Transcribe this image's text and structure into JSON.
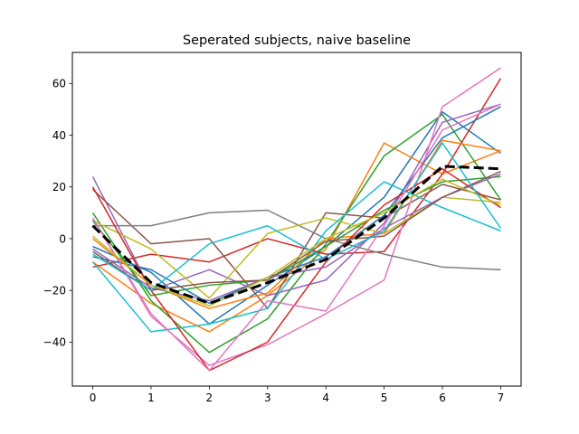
{
  "chart_data": {
    "type": "line",
    "title": "Seperated subjects, naive baseline",
    "xlabel": "",
    "ylabel": "",
    "x": [
      0,
      1,
      2,
      3,
      4,
      5,
      6,
      7
    ],
    "xlim": [
      -0.35,
      7.35
    ],
    "ylim": [
      -57,
      72
    ],
    "xticks": [
      0,
      1,
      2,
      3,
      4,
      5,
      6,
      7
    ],
    "yticks": [
      -40,
      -20,
      0,
      20,
      40,
      60
    ],
    "grid": false,
    "legend": "none",
    "series": [
      {
        "color": "#1f77b4",
        "values": [
          -3,
          -13,
          -33,
          -18,
          -3,
          16,
          49,
          33
        ]
      },
      {
        "color": "#ff7f0e",
        "values": [
          -9,
          -25,
          -36,
          -22,
          -4,
          37,
          25,
          34
        ]
      },
      {
        "color": "#2ca02c",
        "values": [
          10,
          -24,
          -44,
          -31,
          -2,
          32,
          48,
          15
        ]
      },
      {
        "color": "#d62728",
        "values": [
          -11,
          -6,
          -9,
          0,
          -6,
          -5,
          25,
          62
        ]
      },
      {
        "color": "#9467bd",
        "values": [
          24,
          -20,
          -12,
          -22,
          -16,
          6,
          45,
          52
        ]
      },
      {
        "color": "#8c564b",
        "values": [
          19,
          -2,
          0,
          -27,
          10,
          8,
          21,
          15
        ]
      },
      {
        "color": "#e377c2",
        "values": [
          8,
          -30,
          -49,
          -41,
          -29,
          -16,
          51,
          66
        ]
      },
      {
        "color": "#7f7f7f",
        "values": [
          5,
          5,
          10,
          11,
          0,
          -6,
          -11,
          -12
        ]
      },
      {
        "color": "#bcbd22",
        "values": [
          7,
          -4,
          -23,
          2,
          8,
          2,
          16,
          14
        ]
      },
      {
        "color": "#17becf",
        "values": [
          -9,
          -36,
          -33,
          -27,
          3,
          22,
          12,
          3
        ]
      },
      {
        "color": "#1f77b4",
        "values": [
          -7,
          -12,
          -25,
          -15,
          -7,
          9,
          39,
          51
        ]
      },
      {
        "color": "#ff7f0e",
        "values": [
          0,
          -18,
          -27,
          -21,
          0,
          2,
          38,
          34
        ]
      },
      {
        "color": "#2ca02c",
        "values": [
          7,
          -22,
          -18,
          -16,
          -3,
          11,
          22,
          24
        ]
      },
      {
        "color": "#d62728",
        "values": [
          20,
          -20,
          -51,
          -40,
          -9,
          13,
          27,
          12
        ]
      },
      {
        "color": "#9467bd",
        "values": [
          -4,
          -19,
          -24,
          -15,
          -11,
          4,
          16,
          25
        ]
      },
      {
        "color": "#8c564b",
        "values": [
          -5,
          -20,
          -17,
          -16,
          -1,
          1,
          16,
          26
        ]
      },
      {
        "color": "#e377c2",
        "values": [
          8,
          -29,
          -51,
          -24,
          -28,
          5,
          42,
          52
        ]
      },
      {
        "color": "#bcbd22",
        "values": [
          1,
          -18,
          -26,
          -15,
          0,
          10,
          23,
          13
        ]
      },
      {
        "color": "#17becf",
        "values": [
          -6,
          -20,
          -2,
          5,
          -8,
          3,
          37,
          4
        ]
      }
    ],
    "mean_series": {
      "color": "#000000",
      "style": "dashed",
      "values": [
        5,
        -17,
        -25,
        -17,
        -8,
        8,
        28,
        27
      ]
    }
  }
}
